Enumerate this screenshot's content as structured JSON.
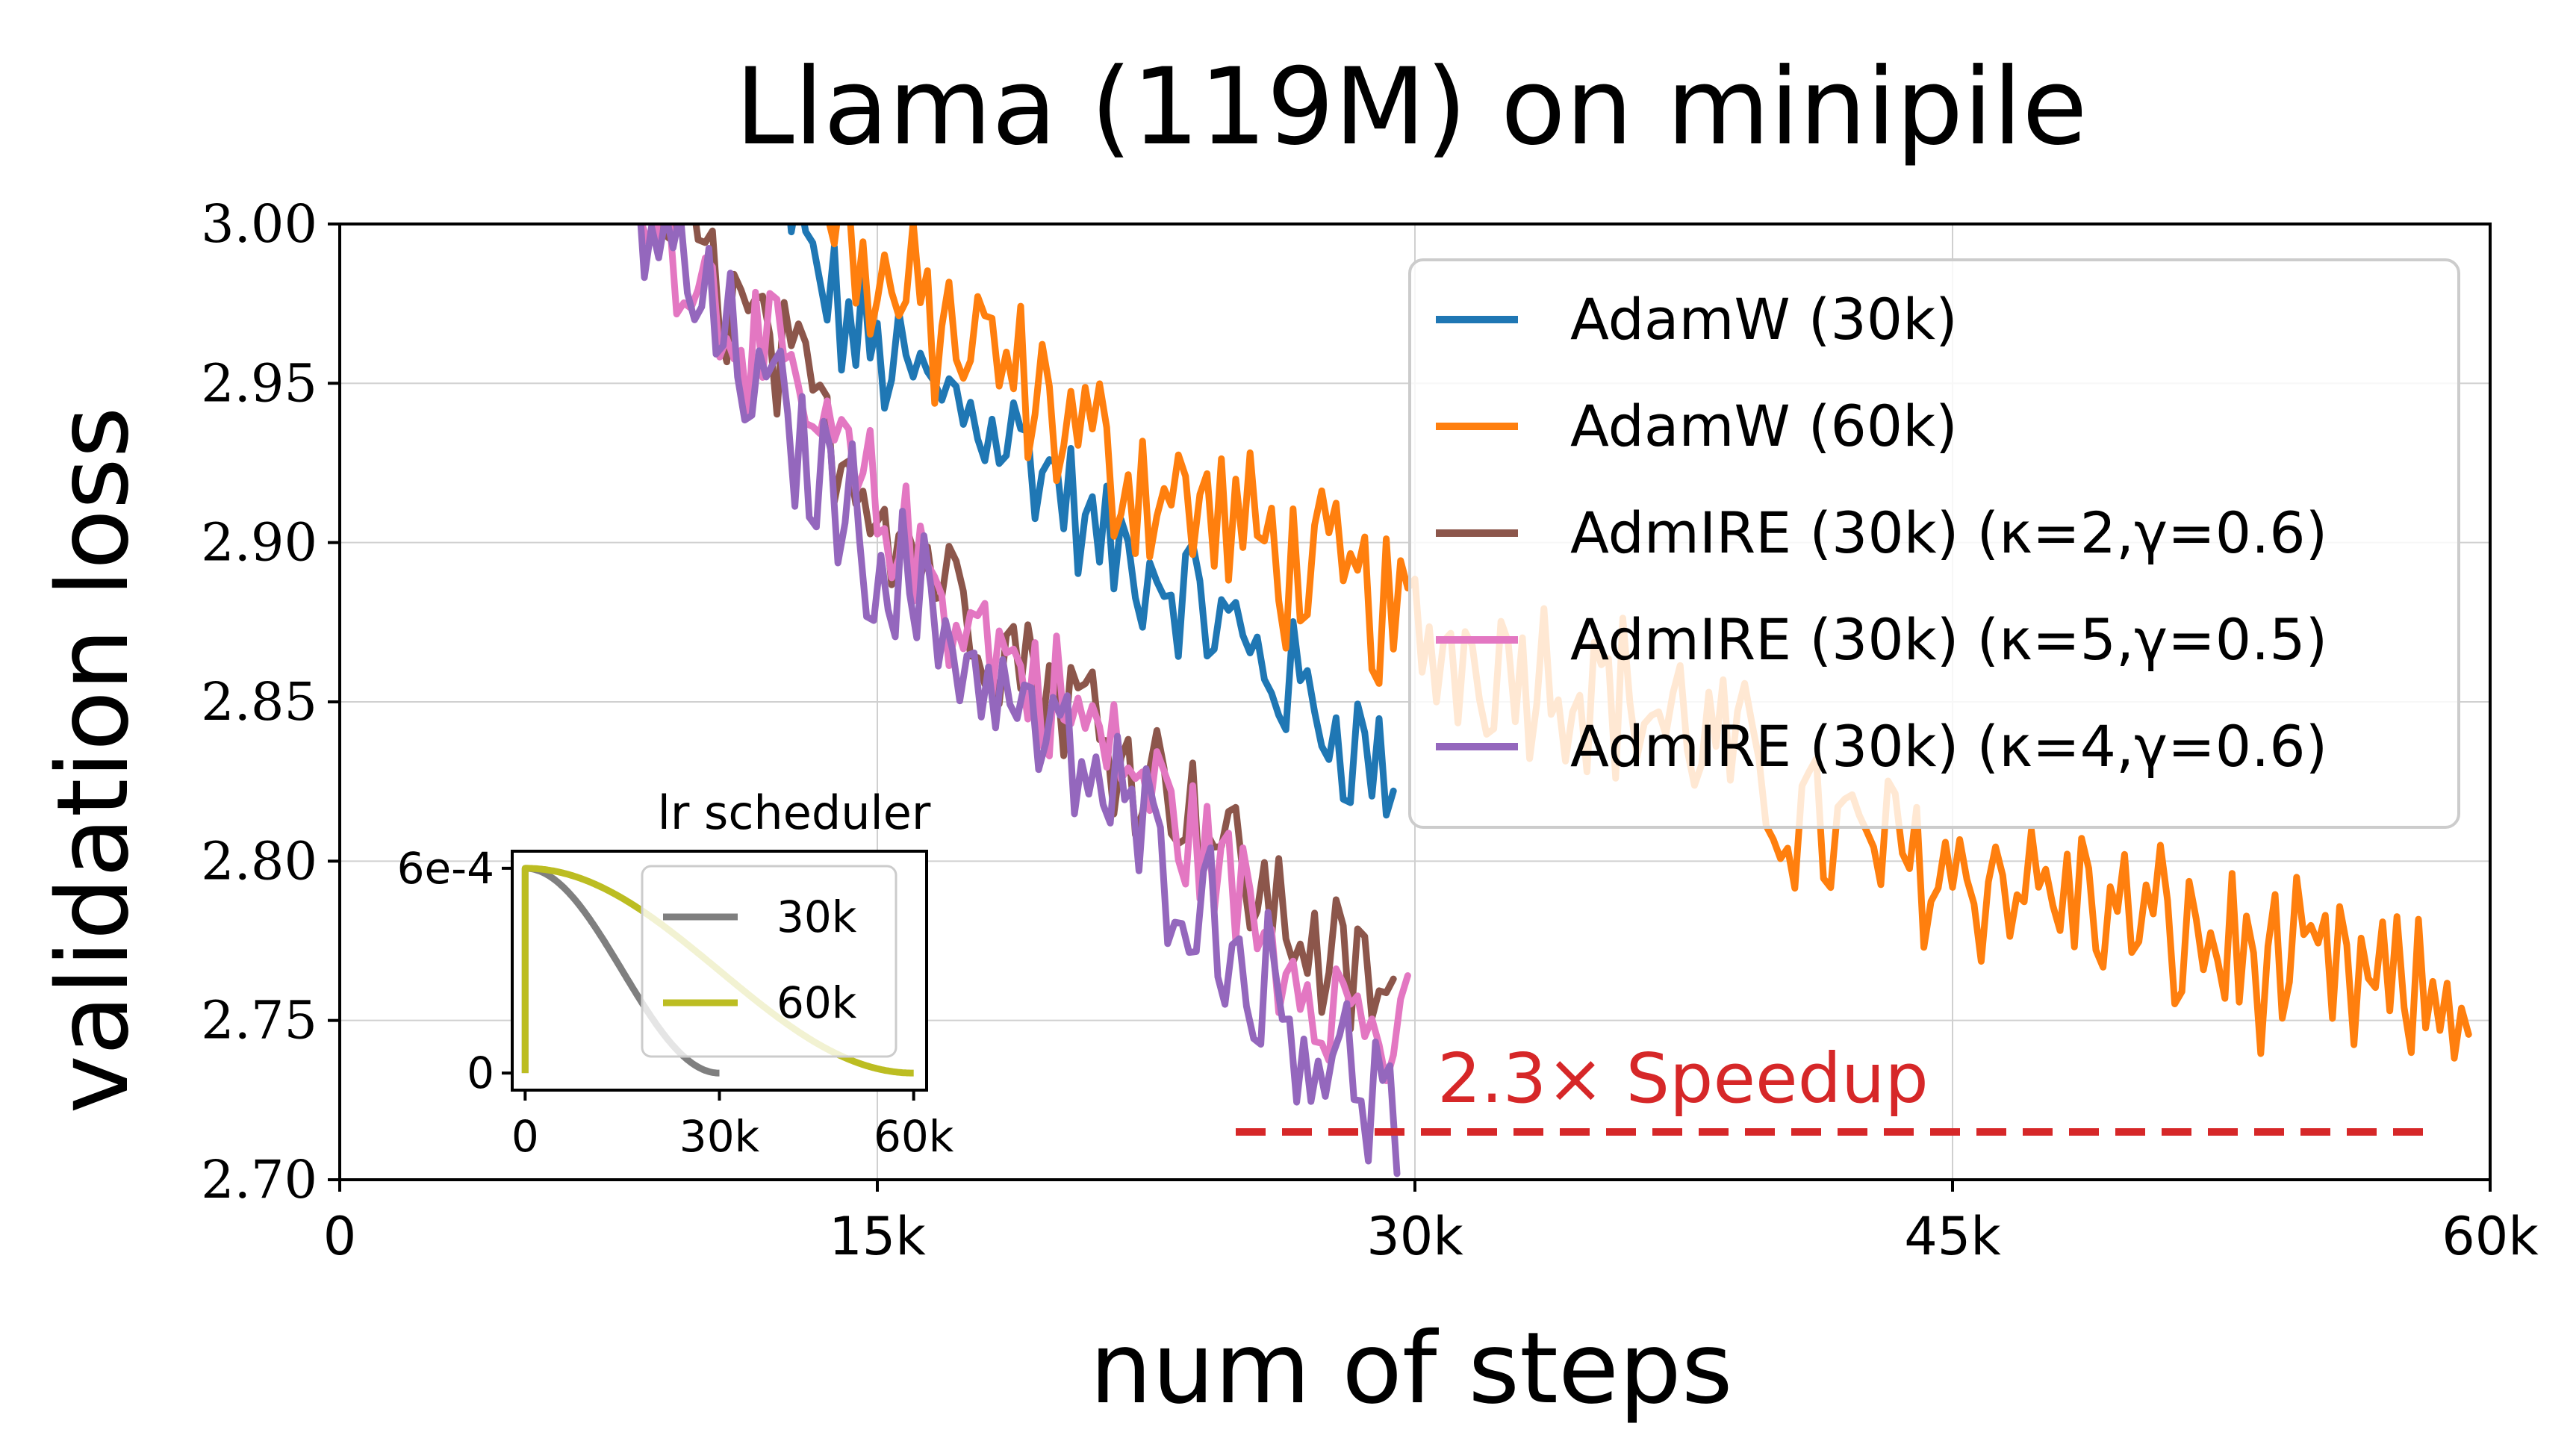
{
  "chart_data": {
    "type": "line",
    "title": "Llama (119M) on minipile",
    "xlabel": "num of steps",
    "ylabel": "validation loss",
    "xlim": [
      0,
      60000
    ],
    "ylim": [
      2.7,
      3.0
    ],
    "xticks": [
      {
        "value": 0,
        "label": "0"
      },
      {
        "value": 15000,
        "label": "15k"
      },
      {
        "value": 30000,
        "label": "30k"
      },
      {
        "value": 45000,
        "label": "45k"
      },
      {
        "value": 60000,
        "label": "60k"
      }
    ],
    "yticks": [
      {
        "value": 2.7,
        "label": "2.70"
      },
      {
        "value": 2.75,
        "label": "2.75"
      },
      {
        "value": 2.8,
        "label": "2.80"
      },
      {
        "value": 2.85,
        "label": "2.85"
      },
      {
        "value": 2.9,
        "label": "2.90"
      },
      {
        "value": 2.95,
        "label": "2.95"
      },
      {
        "value": 3.0,
        "label": "3.00"
      }
    ],
    "grid": true,
    "legend_position": "top-right",
    "series": [
      {
        "name": "AdamW (30k)",
        "color": "#1f77b4",
        "points": [
          [
            12000,
            3.03
          ],
          [
            13000,
            2.99
          ],
          [
            14000,
            2.97
          ],
          [
            15000,
            2.96
          ],
          [
            16000,
            2.95
          ],
          [
            17000,
            2.945
          ],
          [
            18000,
            2.94
          ],
          [
            19000,
            2.93
          ],
          [
            20000,
            2.92
          ],
          [
            21000,
            2.9
          ],
          [
            22000,
            2.895
          ],
          [
            23000,
            2.89
          ],
          [
            24000,
            2.88
          ],
          [
            25000,
            2.87
          ],
          [
            26000,
            2.86
          ],
          [
            27000,
            2.85
          ],
          [
            28000,
            2.84
          ],
          [
            29000,
            2.83
          ],
          [
            29500,
            2.82
          ]
        ]
      },
      {
        "name": "AdamW (60k)",
        "color": "#ff7f0e",
        "points": [
          [
            13000,
            3.02
          ],
          [
            15000,
            2.98
          ],
          [
            17000,
            2.965
          ],
          [
            19000,
            2.95
          ],
          [
            21000,
            2.93
          ],
          [
            23000,
            2.915
          ],
          [
            25000,
            2.905
          ],
          [
            27000,
            2.89
          ],
          [
            29000,
            2.88
          ],
          [
            30000,
            2.87
          ],
          [
            32000,
            2.865
          ],
          [
            34000,
            2.86
          ],
          [
            36000,
            2.85
          ],
          [
            38000,
            2.84
          ],
          [
            40000,
            2.82
          ],
          [
            42000,
            2.805
          ],
          [
            44000,
            2.8
          ],
          [
            46000,
            2.795
          ],
          [
            48000,
            2.79
          ],
          [
            50000,
            2.78
          ],
          [
            52000,
            2.775
          ],
          [
            54000,
            2.765
          ],
          [
            56000,
            2.76
          ],
          [
            58000,
            2.755
          ],
          [
            59500,
            2.76
          ]
        ]
      },
      {
        "name": "AdmIRE (30k) (κ=2,γ=0.6)",
        "color": "#8c564b",
        "points": [
          [
            8000,
            3.02
          ],
          [
            10000,
            2.99
          ],
          [
            12000,
            2.96
          ],
          [
            14000,
            2.93
          ],
          [
            16000,
            2.9
          ],
          [
            18000,
            2.875
          ],
          [
            20000,
            2.855
          ],
          [
            22000,
            2.835
          ],
          [
            24000,
            2.815
          ],
          [
            26000,
            2.785
          ],
          [
            28000,
            2.765
          ],
          [
            29500,
            2.755
          ]
        ]
      },
      {
        "name": "AdmIRE (30k) (κ=5,γ=0.5)",
        "color": "#e377c2",
        "points": [
          [
            8000,
            3.02
          ],
          [
            10000,
            2.985
          ],
          [
            12000,
            2.955
          ],
          [
            14000,
            2.925
          ],
          [
            16000,
            2.895
          ],
          [
            18000,
            2.87
          ],
          [
            20000,
            2.85
          ],
          [
            22000,
            2.83
          ],
          [
            24000,
            2.805
          ],
          [
            26000,
            2.775
          ],
          [
            28000,
            2.755
          ],
          [
            29800,
            2.74
          ]
        ]
      },
      {
        "name": "AdmIRE (30k) (κ=4,γ=0.6)",
        "color": "#9467bd",
        "points": [
          [
            7500,
            3.02
          ],
          [
            9500,
            2.985
          ],
          [
            11500,
            2.95
          ],
          [
            13500,
            2.92
          ],
          [
            15500,
            2.89
          ],
          [
            17500,
            2.865
          ],
          [
            19500,
            2.84
          ],
          [
            21500,
            2.82
          ],
          [
            23500,
            2.795
          ],
          [
            25500,
            2.765
          ],
          [
            27500,
            2.74
          ],
          [
            29500,
            2.72
          ]
        ]
      }
    ],
    "noise_amp": [
      0.02,
      0.025,
      0.02,
      0.02,
      0.022
    ],
    "speedup_annotation": {
      "label": "2.3× Speedup",
      "y": 2.715,
      "x_start": 25000,
      "x_end": 58200,
      "color": "#d62728"
    },
    "inset": {
      "title": "lr scheduler",
      "xticks": [
        {
          "value": 0,
          "label": "0"
        },
        {
          "value": 30000,
          "label": "30k"
        },
        {
          "value": 60000,
          "label": "60k"
        }
      ],
      "yticks": [
        {
          "value": 0,
          "label": "0"
        },
        {
          "value": 0.0006,
          "label": "6e-4"
        }
      ],
      "xlim": [
        -2000,
        62000
      ],
      "ylim": [
        -5e-05,
        0.00065
      ],
      "peak_lr": 0.0006,
      "series": [
        {
          "name": "30k",
          "color": "#7f7f7f",
          "total_steps": 30000
        },
        {
          "name": "60k",
          "color": "#bcbd22",
          "total_steps": 60000
        }
      ],
      "legend_position": "upper right"
    }
  }
}
